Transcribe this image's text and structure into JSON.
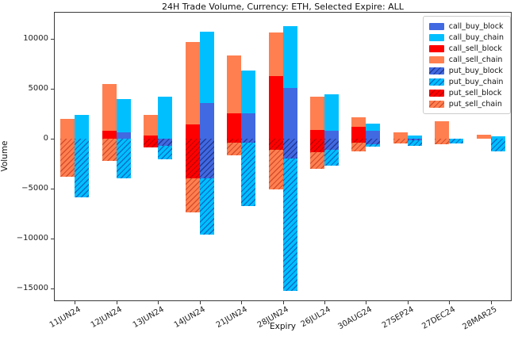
{
  "title": "24H Trade Volume, Currency: ETH, Selected Expire: ALL",
  "chart_data": {
    "type": "bar",
    "stacked": true,
    "title": "24H Trade Volume, Currency: ETH, Selected Expire: ALL",
    "xlabel": "Expiry",
    "ylabel": "Volume",
    "ylim": [
      -16300,
      12700
    ],
    "yticks": [
      10000,
      5000,
      0,
      -5000,
      -10000,
      -15000
    ],
    "grid": true,
    "legend_position": "upper right",
    "categories": [
      "11JUN24",
      "12JUN24",
      "13JUN24",
      "14JUN24",
      "21JUN24",
      "28JUN24",
      "26JUL24",
      "30AUG24",
      "27SEP24",
      "27DEC24",
      "28MAR25"
    ],
    "series": [
      {
        "name": "call_buy_block",
        "color": "#4169E1",
        "hatch": false,
        "hatch_color": "",
        "values": [
          0,
          600,
          0,
          3600,
          2500,
          5100,
          800,
          800,
          0,
          0,
          0
        ]
      },
      {
        "name": "call_buy_chain",
        "color": "#00BFFF",
        "hatch": false,
        "hatch_color": "",
        "values": [
          2400,
          3400,
          4200,
          7100,
          4300,
          6200,
          3600,
          700,
          300,
          0,
          200
        ]
      },
      {
        "name": "call_sell_block",
        "color": "#FF0000",
        "hatch": false,
        "hatch_color": "",
        "values": [
          0,
          800,
          300,
          1400,
          2500,
          6300,
          900,
          1200,
          0,
          0,
          0
        ]
      },
      {
        "name": "call_sell_chain",
        "color": "#FF7F50",
        "hatch": false,
        "hatch_color": "",
        "values": [
          2000,
          4700,
          2100,
          8300,
          5800,
          4300,
          3300,
          900,
          600,
          1700,
          350
        ]
      },
      {
        "name": "put_buy_block",
        "color": "#4169E1",
        "hatch": true,
        "hatch_color": "rgba(8,16,90,0.55)",
        "values": [
          0,
          0,
          -700,
          -4000,
          -400,
          -2000,
          -1100,
          -600,
          -200,
          0,
          0
        ]
      },
      {
        "name": "put_buy_chain",
        "color": "#00BFFF",
        "hatch": true,
        "hatch_color": "rgba(13,40,150,0.55)",
        "values": [
          -5900,
          -4000,
          -1400,
          -5600,
          -6400,
          -13300,
          -1600,
          -200,
          -500,
          -450,
          -1300
        ]
      },
      {
        "name": "put_sell_block",
        "color": "#FF0000",
        "hatch": true,
        "hatch_color": "rgba(130,0,0,0.5)",
        "values": [
          0,
          0,
          -900,
          -4000,
          -400,
          -1100,
          -1400,
          -400,
          0,
          0,
          0
        ]
      },
      {
        "name": "put_sell_chain",
        "color": "#FF7F50",
        "hatch": true,
        "hatch_color": "rgba(185,45,20,0.6)",
        "values": [
          -3800,
          -2200,
          0,
          -3400,
          -1300,
          -4000,
          -1600,
          -900,
          -500,
          -600,
          0
        ]
      }
    ],
    "bar_roles": {
      "sell_positive": [
        "call_sell_block",
        "call_sell_chain"
      ],
      "sell_negative": [
        "put_sell_block",
        "put_sell_chain"
      ],
      "buy_positive": [
        "call_buy_block",
        "call_buy_chain"
      ],
      "buy_negative": [
        "put_buy_block",
        "put_buy_chain"
      ]
    }
  }
}
